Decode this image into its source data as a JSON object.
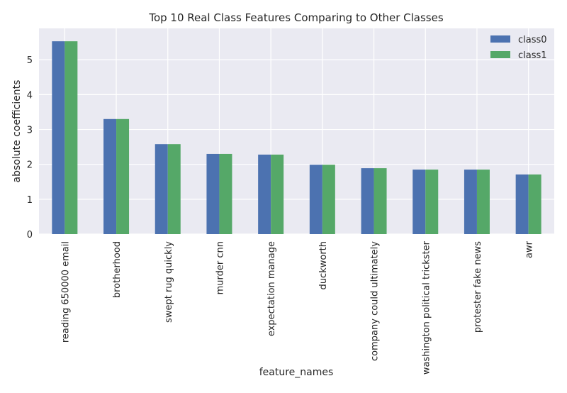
{
  "chart_data": {
    "type": "bar",
    "title": "Top 10 Real Class Features Comparing to Other Classes",
    "xlabel": "feature_names",
    "ylabel": "absolute coefficients",
    "categories": [
      "reading 650000 email",
      "brotherhood",
      "swept rug quickly",
      "murder cnn",
      "expectation manage",
      "duckworth",
      "company could ultimately",
      "washington political trickster",
      "protester fake news",
      "awr"
    ],
    "series": [
      {
        "name": "class0",
        "color": "#4c72b0",
        "values": [
          5.53,
          3.3,
          2.58,
          2.3,
          2.28,
          1.99,
          1.89,
          1.85,
          1.85,
          1.71
        ]
      },
      {
        "name": "class1",
        "color": "#55a868",
        "values": [
          5.53,
          3.3,
          2.58,
          2.3,
          2.28,
          1.99,
          1.89,
          1.85,
          1.85,
          1.71
        ]
      }
    ],
    "ylim": [
      0,
      5.9
    ],
    "yticks": [
      "0",
      "1",
      "2",
      "3",
      "4",
      "5"
    ],
    "grid": true,
    "legend_position": "top-right",
    "style": {
      "background": "#eaeaf2",
      "grid_color": "#ffffff"
    }
  }
}
